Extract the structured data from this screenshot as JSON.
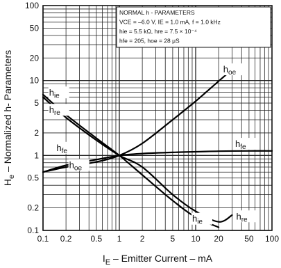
{
  "chart_data": {
    "type": "line",
    "scale": {
      "x": "log",
      "y": "log"
    },
    "xlim": [
      0.1,
      100
    ],
    "ylim": [
      0.1,
      100
    ],
    "grid": true,
    "xticks": [
      {
        "value": 0.1,
        "label": "0.1"
      },
      {
        "value": 0.2,
        "label": "0.2"
      },
      {
        "value": 0.5,
        "label": "0.5"
      },
      {
        "value": 1,
        "label": "1"
      },
      {
        "value": 2,
        "label": "2"
      },
      {
        "value": 5,
        "label": "5"
      },
      {
        "value": 10,
        "label": "10"
      },
      {
        "value": 20,
        "label": "20"
      },
      {
        "value": 50,
        "label": "50"
      },
      {
        "value": 100,
        "label": "100"
      }
    ],
    "yticks": [
      {
        "value": 0.1,
        "label": "0.1"
      },
      {
        "value": 0.2,
        "label": "0.2"
      },
      {
        "value": 0.5,
        "label": "0.5"
      },
      {
        "value": 1,
        "label": "1"
      },
      {
        "value": 2,
        "label": "2"
      },
      {
        "value": 5,
        "label": "5"
      },
      {
        "value": 10,
        "label": "10"
      },
      {
        "value": 20,
        "label": "20"
      },
      {
        "value": 50,
        "label": "50"
      },
      {
        "value": 100,
        "label": "100"
      }
    ],
    "xlabel": {
      "main": "I",
      "sub": "E",
      "rest": " – Emitter Current – mA"
    },
    "ylabel": {
      "main": "H",
      "sub": "e",
      "rest": " – Normalized h- Parameters"
    },
    "annotation_box": {
      "lines": [
        "NORMAL  h - PARAMETERS",
        "VCE = –6.0 V, IE = 1.0 mA, f = 1.0 kHz",
        "hie = 5.5 kΩ, hre = 7.5 × 10⁻⁴",
        "hfe = 205, hoe = 28  μS"
      ]
    },
    "series": [
      {
        "name": "hoe",
        "label_main": "h",
        "label_sub": "oe",
        "x": [
          0.1,
          0.2,
          0.5,
          1,
          2,
          5,
          10,
          20,
          30
        ],
        "y": [
          0.6,
          0.7,
          0.82,
          1.0,
          1.45,
          3.0,
          5.3,
          9.8,
          14
        ]
      },
      {
        "name": "hfe",
        "label_main": "h",
        "label_sub": "fe",
        "x": [
          0.1,
          0.2,
          0.5,
          1,
          2,
          5,
          10,
          20,
          50,
          100
        ],
        "y": [
          0.6,
          0.74,
          0.88,
          1.0,
          1.06,
          1.1,
          1.12,
          1.14,
          1.15,
          1.15
        ]
      },
      {
        "name": "hie",
        "label_main": "h",
        "label_sub": "ie",
        "x": [
          0.1,
          0.2,
          0.5,
          1,
          2,
          5,
          10,
          20
        ],
        "y": [
          6.5,
          3.5,
          1.7,
          1.0,
          0.55,
          0.25,
          0.15,
          0.11
        ]
      },
      {
        "name": "hre",
        "label_main": "h",
        "label_sub": "re",
        "x": [
          0.1,
          0.2,
          0.5,
          1,
          2,
          5,
          10,
          20,
          30
        ],
        "y": [
          6.0,
          3.2,
          1.6,
          1.0,
          0.7,
          0.3,
          0.18,
          0.13,
          0.16
        ]
      }
    ],
    "curve_labels": [
      {
        "series": "hie",
        "anchor": [
          0.12,
          6.3
        ]
      },
      {
        "series": "hre",
        "anchor": [
          0.12,
          3.7
        ]
      },
      {
        "series": "hoe",
        "anchor": [
          23,
          12.8
        ]
      },
      {
        "series": "hfe",
        "anchor": [
          0.15,
          1.15
        ]
      },
      {
        "series": "hoe",
        "anchor": [
          0.22,
          0.68
        ]
      },
      {
        "series": "hfe",
        "anchor": [
          33,
          1.3
        ]
      },
      {
        "series": "hie",
        "anchor": [
          9,
          0.13
        ]
      },
      {
        "series": "hre",
        "anchor": [
          34,
          0.14
        ]
      }
    ]
  }
}
